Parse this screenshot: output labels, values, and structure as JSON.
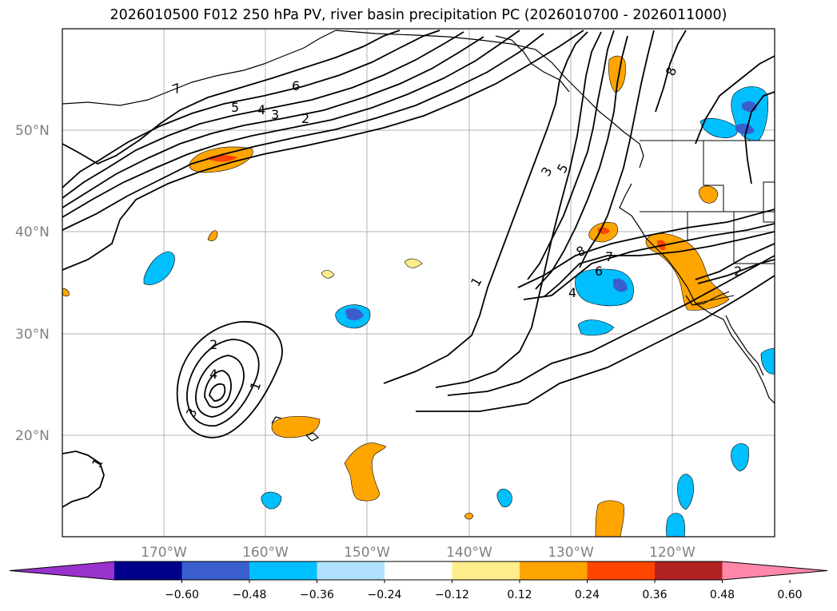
{
  "title": "2026010500 F012 250 hPa PV, river basin precipitation PC (2026010700 - 2026011000)",
  "map": {
    "lat_labels": [
      "50°N",
      "40°N",
      "30°N",
      "20°N"
    ],
    "lon_labels": [
      "170°W",
      "160°W",
      "150°W",
      "140°W",
      "130°W",
      "120°W"
    ],
    "pv_contour_labels": [
      "7",
      "6",
      "5",
      "4",
      "3",
      "2",
      "1",
      "2",
      "4",
      "3",
      "1",
      "1",
      "3",
      "5",
      "8",
      "7",
      "6",
      "4",
      "8",
      "2"
    ]
  },
  "colorbar": {
    "colors": [
      "#9932cc",
      "#00008b",
      "#3a5fcd",
      "#00bfff",
      "#b0e2ff",
      "#ffffff",
      "#ffec8b",
      "#ffa500",
      "#ff4500",
      "#b22222",
      "#ff88aa"
    ],
    "tick_labels": [
      "−0.60",
      "−0.48",
      "−0.36",
      "−0.24",
      "−0.12",
      "0.12",
      "0.24",
      "0.36",
      "0.48",
      "0.60"
    ]
  }
}
